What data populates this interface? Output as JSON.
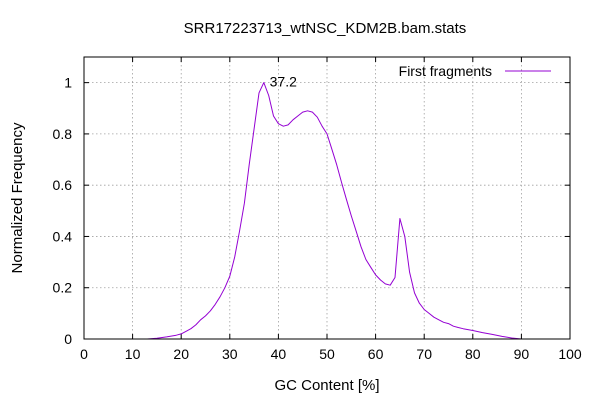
{
  "chart_data": {
    "type": "line",
    "title": "SRR17223713_wtNSC_KDM2B.bam.stats",
    "xlabel": "GC Content [%]",
    "ylabel": "Normalized Frequency",
    "xlim": [
      0,
      100
    ],
    "ylim": [
      0,
      1.1
    ],
    "xticks": [
      0,
      10,
      20,
      30,
      40,
      50,
      60,
      70,
      80,
      90,
      100
    ],
    "yticks": [
      0,
      0.2,
      0.4,
      0.6,
      0.8,
      1
    ],
    "yticklabels": [
      "0",
      "0.2",
      "0.4",
      "0.6",
      "0.8",
      "1"
    ],
    "grid": true,
    "legend_position": "top-right",
    "annotations": [
      {
        "text": "37.2",
        "x": 38.2,
        "y": 0.985
      }
    ],
    "series": [
      {
        "name": "First fragments",
        "color": "#9400d3",
        "x": [
          13,
          15,
          17,
          19,
          20,
          21,
          22,
          23,
          24,
          25,
          26,
          27,
          28,
          29,
          30,
          31,
          32,
          33,
          34,
          35,
          36,
          37,
          38,
          39,
          40,
          41,
          42,
          43,
          44,
          45,
          46,
          47,
          48,
          49,
          50,
          51,
          52,
          53,
          54,
          55,
          56,
          57,
          58,
          59,
          60,
          61,
          62,
          63,
          64,
          65,
          66,
          67,
          68,
          69,
          70,
          71,
          72,
          73,
          74,
          75,
          76,
          77,
          78,
          80,
          82,
          84,
          86,
          88,
          89,
          90
        ],
        "y": [
          0.0,
          0.003,
          0.008,
          0.015,
          0.02,
          0.03,
          0.04,
          0.055,
          0.075,
          0.09,
          0.11,
          0.135,
          0.165,
          0.2,
          0.245,
          0.32,
          0.42,
          0.53,
          0.68,
          0.82,
          0.96,
          1.0,
          0.95,
          0.87,
          0.84,
          0.83,
          0.835,
          0.855,
          0.87,
          0.885,
          0.89,
          0.885,
          0.865,
          0.83,
          0.8,
          0.74,
          0.68,
          0.61,
          0.545,
          0.48,
          0.42,
          0.36,
          0.31,
          0.28,
          0.25,
          0.23,
          0.215,
          0.21,
          0.24,
          0.47,
          0.4,
          0.26,
          0.18,
          0.14,
          0.115,
          0.1,
          0.085,
          0.075,
          0.065,
          0.06,
          0.05,
          0.045,
          0.04,
          0.033,
          0.025,
          0.018,
          0.01,
          0.004,
          0.002,
          0.0
        ]
      }
    ]
  }
}
